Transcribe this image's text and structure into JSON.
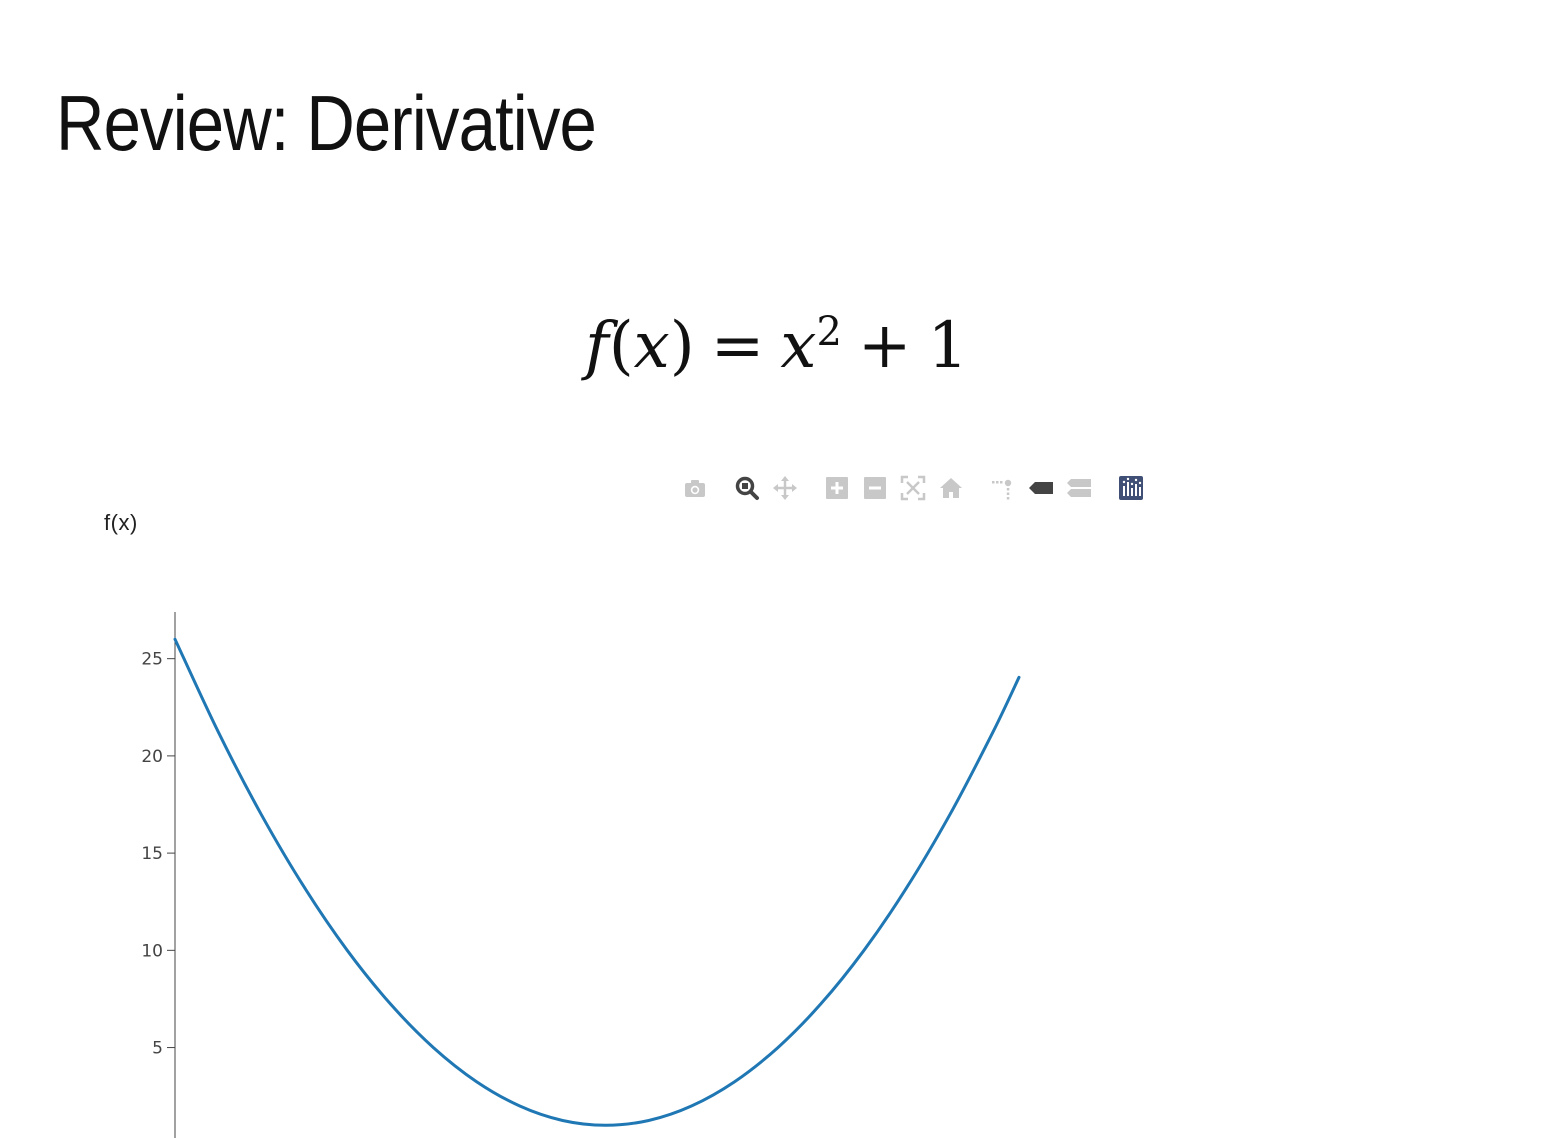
{
  "slide": {
    "title": "Review: Derivative"
  },
  "equation": {
    "lhs_f": "f",
    "lhs_open": "(",
    "lhs_x": "x",
    "lhs_close": ")",
    "equals": "=",
    "rhs_x": "x",
    "exponent": "2",
    "plus": "+",
    "constant": "1"
  },
  "modebar": {
    "icons": [
      "camera-icon",
      "zoom-icon",
      "pan-icon",
      "zoom-in-icon",
      "zoom-out-icon",
      "autoscale-icon",
      "home-icon",
      "spike-lines-icon",
      "hover-closest-icon",
      "hover-compare-icon",
      "plotly-logo-icon"
    ],
    "active_color": "#444444",
    "inactive_color": "#c8c8c8",
    "logo_color": "#3f4f75"
  },
  "chart_data": {
    "type": "line",
    "ylabel": "f(x)",
    "xlabel": "",
    "series": [
      {
        "color": "#1f77b4",
        "x": [
          -5,
          -4.5,
          -4,
          -3.5,
          -3,
          -2.5,
          -2,
          -1.5,
          -1,
          -0.5,
          0,
          0.5,
          1,
          1.5,
          2,
          2.5,
          3,
          3.5,
          4,
          4.5,
          4.8
        ],
        "y": [
          26,
          21.25,
          17,
          13.25,
          10,
          7.25,
          5,
          3.25,
          2,
          1.25,
          1,
          1.25,
          2,
          3.25,
          5,
          7.25,
          10,
          13.25,
          17,
          21.25,
          24.04
        ]
      }
    ],
    "xlim": [
      -5,
      4.8
    ],
    "ylim": [
      0.4,
      27.4
    ],
    "yticks": [
      5,
      10,
      15,
      20,
      25
    ],
    "ytick_labels": [
      "5",
      "10",
      "15",
      "20",
      "25"
    ],
    "grid": false,
    "legend": "none"
  }
}
